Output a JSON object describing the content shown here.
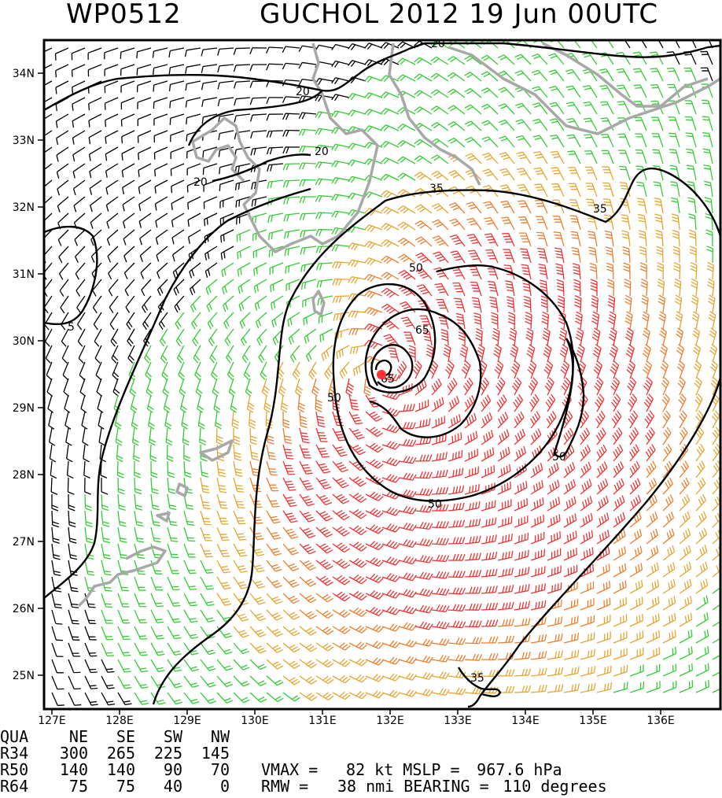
{
  "title": {
    "left": "WP0512",
    "right": "GUCHOL 2012 19 Jun 00UTC"
  },
  "axes": {
    "lat_labels": [
      "25N",
      "26N",
      "27N",
      "28N",
      "29N",
      "30N",
      "31N",
      "32N",
      "33N",
      "34N"
    ],
    "lon_labels": [
      "127E",
      "128E",
      "129E",
      "130E",
      "131E",
      "132E",
      "133E",
      "134E",
      "135E",
      "136E"
    ]
  },
  "contour_labels": [
    "5",
    "20",
    "20",
    "20",
    "20",
    "35",
    "35",
    "35",
    "50",
    "50",
    "50",
    "50",
    "65",
    "65"
  ],
  "wind_color_scale": {
    "calm": "#000000",
    "gale": "#33cc33",
    "storm": "#e6a531",
    "strong": "#ee7d2b",
    "hurricane": "#ee3333"
  },
  "storm_center_color": "#ff3333",
  "coast_color": "#a8a8a8",
  "quadrant_table": {
    "header": [
      "QUA",
      "NE",
      "SE",
      "SW",
      "NW"
    ],
    "rows": [
      [
        "R34",
        "300",
        "265",
        "225",
        "145"
      ],
      [
        "R50",
        "140",
        "140",
        "90",
        "70"
      ],
      [
        "R64",
        "75",
        "75",
        "40",
        "0"
      ]
    ]
  },
  "stats": {
    "vmax_label": "VMAX =",
    "vmax_value": "82 kt",
    "mslp_label": "MSLP =",
    "mslp_value": "967.6 hPa",
    "rmw_label": "RMW =",
    "rmw_value": "38 nmi",
    "bearing_label": "BEARING =",
    "bearing_value": "110 degrees"
  }
}
